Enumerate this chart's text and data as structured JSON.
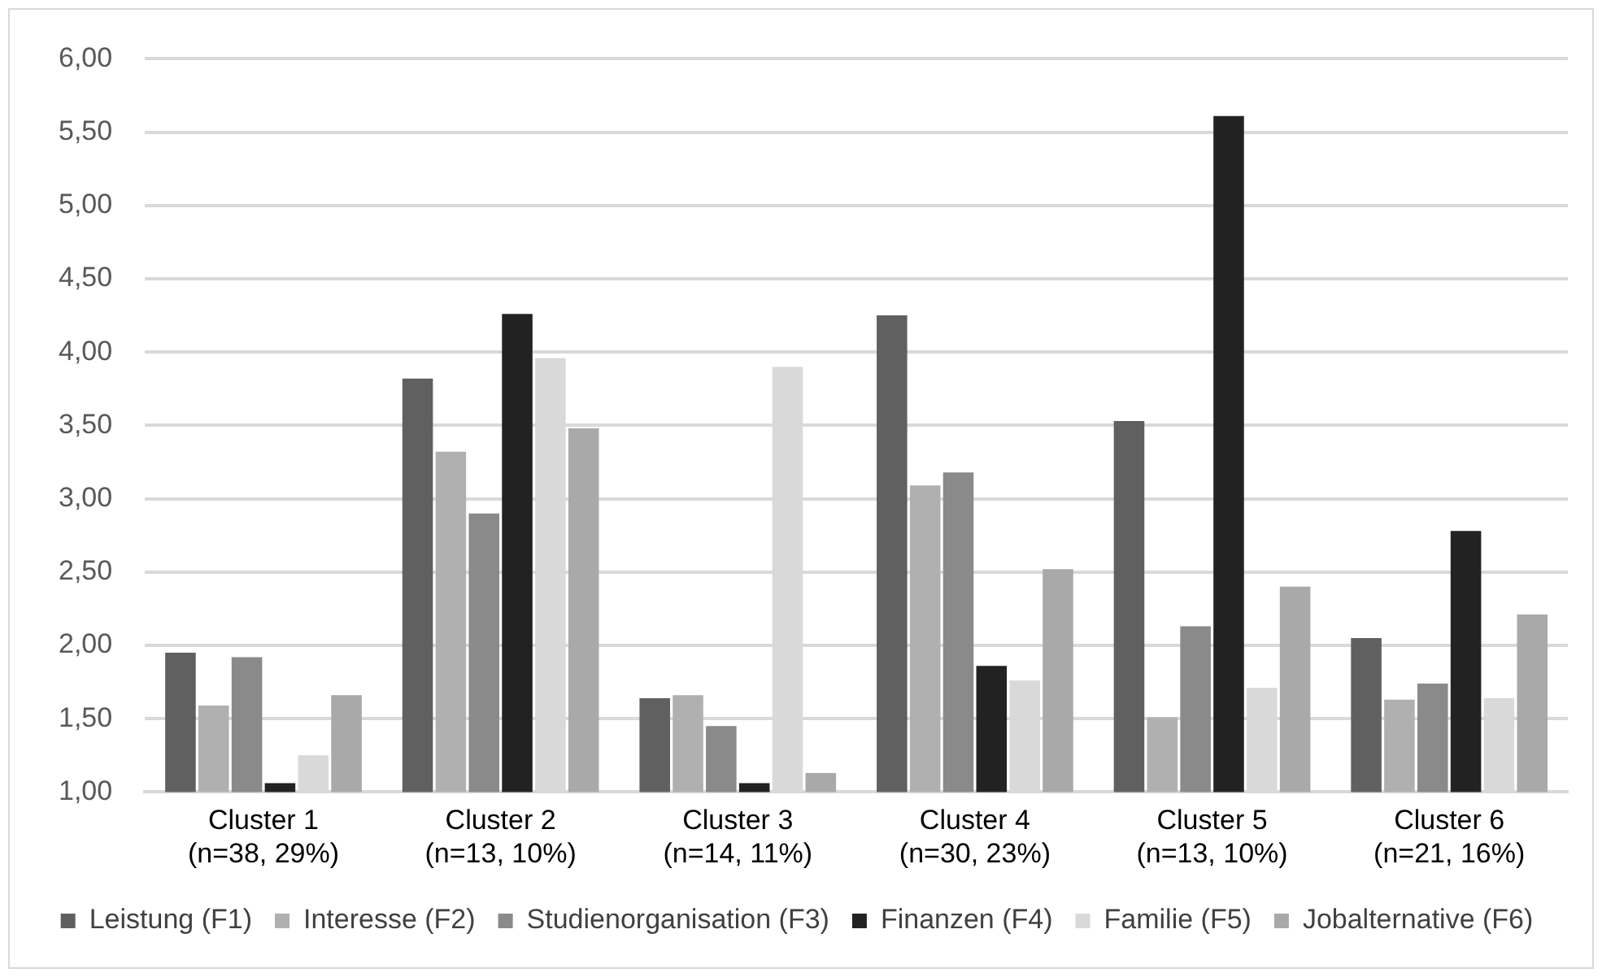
{
  "chart_data": {
    "type": "bar",
    "categories": [
      "Cluster 1 (n=38, 29%)",
      "Cluster 2 (n=13, 10%)",
      "Cluster 3 (n=14, 11%)",
      "Cluster 4 (n=30, 23%)",
      "Cluster 5 (n=13, 10%)",
      "Cluster 6 (n=21, 16%)"
    ],
    "series": [
      {
        "name": "Leistung (F1)",
        "color": "#606060",
        "values": [
          1.95,
          3.82,
          1.64,
          4.25,
          3.53,
          2.05
        ]
      },
      {
        "name": "Interesse (F2)",
        "color": "#b0b0b0",
        "values": [
          1.59,
          3.32,
          1.66,
          3.09,
          1.51,
          1.63
        ]
      },
      {
        "name": "Studienorganisation (F3)",
        "color": "#8a8a8a",
        "values": [
          1.92,
          2.9,
          1.45,
          3.18,
          2.13,
          1.74
        ]
      },
      {
        "name": "Finanzen (F4)",
        "color": "#222222",
        "values": [
          1.06,
          4.26,
          1.06,
          1.86,
          5.61,
          2.78
        ]
      },
      {
        "name": "Familie (F5)",
        "color": "#d9d9d9",
        "values": [
          1.25,
          3.96,
          3.9,
          1.76,
          1.71,
          1.64
        ]
      },
      {
        "name": "Jobalternative (F6)",
        "color": "#a9a9a9",
        "values": [
          1.66,
          3.48,
          1.13,
          2.52,
          2.4,
          2.21
        ]
      }
    ],
    "ylim": [
      1,
      6
    ],
    "yticks": [
      {
        "value": 1,
        "label": "1,00"
      },
      {
        "value": 1.5,
        "label": "1,50"
      },
      {
        "value": 2,
        "label": "2,00"
      },
      {
        "value": 2.5,
        "label": "2,50"
      },
      {
        "value": 3,
        "label": "3,00"
      },
      {
        "value": 3.5,
        "label": "3,50"
      },
      {
        "value": 4,
        "label": "4,00"
      },
      {
        "value": 4.5,
        "label": "4,50"
      },
      {
        "value": 5,
        "label": "5,00"
      },
      {
        "value": 5.5,
        "label": "5,50"
      },
      {
        "value": 6,
        "label": "6,00"
      }
    ],
    "grid": "y",
    "legend": "bottom"
  }
}
